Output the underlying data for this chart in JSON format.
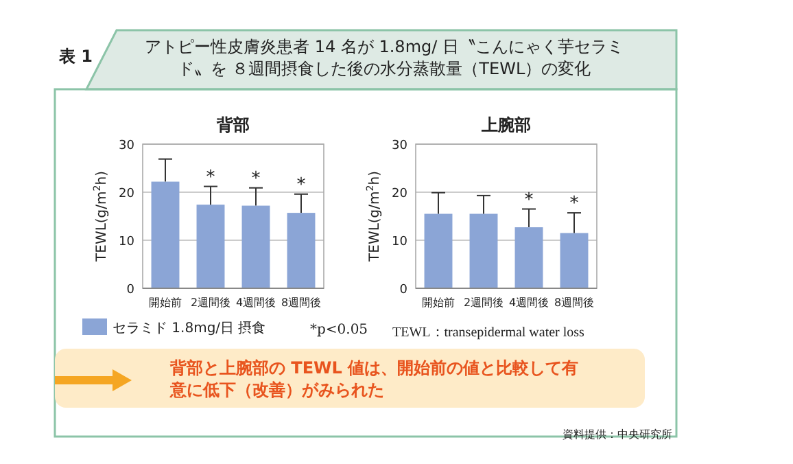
{
  "chart_data": [
    {
      "type": "other",
      "title": "アトピー性皮膚炎患者 14 名が 1.8mg/ 日〝こんにゃく芋セラミド〟を ８週間摂食した後の水分蒸散量（TEWL）の変化",
      "annotations": [
        "表 1"
      ]
    },
    {
      "type": "bar",
      "title": "背部",
      "ylabel": "TEWL(g/m$^{2}$h)",
      "categories": [
        "開始前",
        "2週間後",
        "4週間後",
        "8週間後"
      ],
      "series": [
        {
          "name": "セラミド 1.8mg/日 摂食",
          "color": "#8ba5d6",
          "values": [
            22.2,
            17.4,
            17.2,
            15.7
          ],
          "errors": [
            [
              22.2,
              26.9
            ],
            [
              17.4,
              21.2
            ],
            [
              17.2,
              20.9
            ],
            [
              15.7,
              19.6
            ]
          ]
        }
      ],
      "ylim": [
        0,
        30
      ],
      "yticks": [
        0,
        10,
        20,
        30
      ],
      "grid": "y",
      "legend": "bottom",
      "annotations": [
        {
          "text": "*",
          "x": "2週間後",
          "y": 21.2
        },
        {
          "text": "*",
          "x": "4週間後",
          "y": 20.9
        },
        {
          "text": "*",
          "x": "8週間後",
          "y": 19.6
        }
      ]
    },
    {
      "type": "bar",
      "title": "上腕部",
      "ylabel": "TEWL(g/m$^{2}$h)",
      "categories": [
        "開始前",
        "2週間後",
        "4週間後",
        "8週間後"
      ],
      "series": [
        {
          "color": "#8ba5d6",
          "values": [
            15.5,
            15.5,
            12.7,
            11.5
          ],
          "errors": [
            [
              15.5,
              19.9
            ],
            [
              15.5,
              19.3
            ],
            [
              12.7,
              16.5
            ],
            [
              11.5,
              15.7
            ]
          ]
        }
      ],
      "ylim": [
        0,
        30
      ],
      "yticks": [
        0,
        10,
        20,
        30
      ],
      "grid": "y",
      "annotations": [
        {
          "text": "*",
          "x": "4週間後",
          "y": 16.5
        },
        {
          "text": "*",
          "x": "8週間後",
          "y": 15.7
        }
      ]
    },
    {
      "type": "other",
      "annotations": [
        "*p<0.05",
        "TEWL：transepidermal water loss",
        "背部と上腕部の TEWL 値は、開始前の値と比較して有意に低下（改善）がみられた",
        "資料提供：中央研究所"
      ]
    }
  ]
}
